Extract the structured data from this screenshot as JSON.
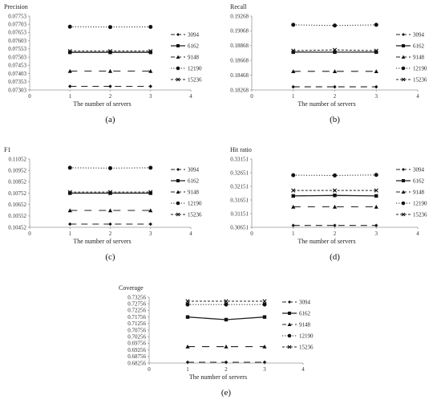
{
  "figure": {
    "legend_labels": [
      "3094",
      "6162",
      "9148",
      "12190",
      "15236"
    ],
    "xlabel": "The number of servers"
  },
  "chart_data": [
    {
      "id": "precision",
      "type": "line",
      "title": "Precision",
      "xlabel": "The number of servers",
      "caption": "(a)",
      "xticks": [
        0,
        1,
        2,
        3,
        4
      ],
      "xlim": [
        0,
        4
      ],
      "yticks": [
        "0.07303",
        "0.07353",
        "0.07403",
        "0.07453",
        "0.07503",
        "0.07553",
        "0.07603",
        "0.07653",
        "0.07703",
        "0.07753"
      ],
      "ylim": [
        0.07303,
        0.07753
      ],
      "x": [
        1,
        2,
        3
      ],
      "legend": "right",
      "grid": false,
      "series": [
        {
          "name": "3094",
          "values": [
            0.07325,
            0.07325,
            0.07325
          ]
        },
        {
          "name": "6162",
          "values": [
            0.07532,
            0.07532,
            0.07532
          ]
        },
        {
          "name": "9148",
          "values": [
            0.07418,
            0.07418,
            0.07418
          ]
        },
        {
          "name": "12190",
          "values": [
            0.07688,
            0.07686,
            0.07687
          ]
        },
        {
          "name": "15236",
          "values": [
            0.0754,
            0.0754,
            0.0754
          ]
        }
      ]
    },
    {
      "id": "recall",
      "type": "line",
      "title": "Recall",
      "xlabel": "The number of servers",
      "caption": "(b)",
      "xticks": [
        0,
        1,
        2,
        3,
        4
      ],
      "xlim": [
        0,
        4
      ],
      "yticks": [
        "0.18268",
        "0.18468",
        "0.18668",
        "0.18868",
        "0.19068",
        "0.19268"
      ],
      "ylim": [
        0.18268,
        0.19268
      ],
      "x": [
        1,
        2,
        3
      ],
      "legend": "right",
      "grid": false,
      "series": [
        {
          "name": "3094",
          "values": [
            0.1831,
            0.1831,
            0.1831
          ]
        },
        {
          "name": "6162",
          "values": [
            0.1878,
            0.1878,
            0.1878
          ]
        },
        {
          "name": "9148",
          "values": [
            0.1852,
            0.1852,
            0.1852
          ]
        },
        {
          "name": "12190",
          "values": [
            0.1915,
            0.1914,
            0.1915
          ]
        },
        {
          "name": "15236",
          "values": [
            0.188,
            0.1881,
            0.188
          ]
        }
      ]
    },
    {
      "id": "f1",
      "type": "line",
      "title": "F1",
      "xlabel": "The number of servers",
      "caption": "(c)",
      "xticks": [
        0,
        1,
        2,
        3,
        4
      ],
      "xlim": [
        0,
        4
      ],
      "yticks": [
        "0.10452",
        "0.10552",
        "0.10652",
        "0.10752",
        "0.10852",
        "0.10952",
        "0.11052"
      ],
      "ylim": [
        0.10452,
        0.11052
      ],
      "x": [
        1,
        2,
        3
      ],
      "legend": "right",
      "grid": false,
      "series": [
        {
          "name": "3094",
          "values": [
            0.1048,
            0.1048,
            0.1048
          ]
        },
        {
          "name": "6162",
          "values": [
            0.10752,
            0.10752,
            0.10752
          ]
        },
        {
          "name": "9148",
          "values": [
            0.106,
            0.106,
            0.106
          ]
        },
        {
          "name": "12190",
          "values": [
            0.10975,
            0.10972,
            0.10975
          ]
        },
        {
          "name": "15236",
          "values": [
            0.10762,
            0.10762,
            0.10762
          ]
        }
      ]
    },
    {
      "id": "hit_ratio",
      "type": "line",
      "title": "Hit ratio",
      "xlabel": "The number of servers",
      "caption": "(d)",
      "xticks": [
        0,
        1,
        2,
        3,
        4
      ],
      "xlim": [
        0,
        4
      ],
      "yticks": [
        "0.30651",
        "0.31151",
        "0.31651",
        "0.32151",
        "0.32651",
        "0.33151"
      ],
      "ylim": [
        0.30651,
        0.33151
      ],
      "x": [
        1,
        2,
        3
      ],
      "legend": "right",
      "grid": false,
      "series": [
        {
          "name": "3094",
          "values": [
            0.3072,
            0.3072,
            0.3072
          ]
        },
        {
          "name": "6162",
          "values": [
            0.318,
            0.3182,
            0.318
          ]
        },
        {
          "name": "9148",
          "values": [
            0.314,
            0.314,
            0.314
          ]
        },
        {
          "name": "12190",
          "values": [
            0.3256,
            0.3255,
            0.3257
          ]
        },
        {
          "name": "15236",
          "values": [
            0.32,
            0.32,
            0.32
          ]
        }
      ]
    },
    {
      "id": "coverage",
      "type": "line",
      "title": "Coverage",
      "xlabel": "The number of servers",
      "caption": "(e)",
      "xticks": [
        0,
        1,
        2,
        3,
        4
      ],
      "xlim": [
        0,
        4
      ],
      "yticks": [
        "0.68256",
        "0.68756",
        "0.69256",
        "0.69756",
        "0.70256",
        "0.70756",
        "0.71256",
        "0.71756",
        "0.72256",
        "0.72756",
        "0.73256"
      ],
      "ylim": [
        0.68256,
        0.73256
      ],
      "x": [
        1,
        2,
        3
      ],
      "legend": "right",
      "grid": false,
      "series": [
        {
          "name": "3094",
          "values": [
            0.6832,
            0.6832,
            0.6832
          ]
        },
        {
          "name": "6162",
          "values": [
            0.7175,
            0.7155,
            0.7175
          ]
        },
        {
          "name": "9148",
          "values": [
            0.695,
            0.695,
            0.695
          ]
        },
        {
          "name": "12190",
          "values": [
            0.727,
            0.727,
            0.727
          ]
        },
        {
          "name": "15236",
          "values": [
            0.7295,
            0.7295,
            0.7295
          ]
        }
      ]
    }
  ]
}
